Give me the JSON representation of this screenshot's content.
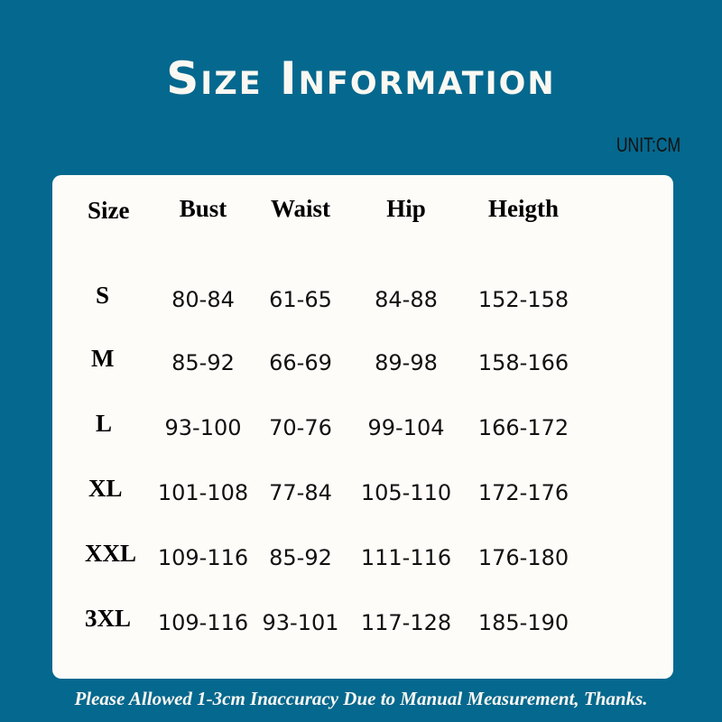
{
  "title": "Size Information",
  "unit": "UNIT:CM",
  "table": {
    "headers": [
      "Size",
      "Bust",
      "Waist",
      "Hip",
      "Heigth"
    ],
    "rows": [
      [
        "S",
        "80-84",
        "61-65",
        "84-88",
        "152-158"
      ],
      [
        "M",
        "85-92",
        "66-69",
        "89-98",
        "158-166"
      ],
      [
        "L",
        "93-100",
        "70-76",
        "99-104",
        "166-172"
      ],
      [
        "XL",
        "101-108",
        "77-84",
        "105-110",
        "172-176"
      ],
      [
        "XXL",
        "109-116",
        "85-92",
        "111-116",
        "176-180"
      ],
      [
        "3XL",
        "109-116",
        "93-101",
        "117-128",
        "185-190"
      ]
    ]
  },
  "note": "Please Allowed 1-3cm Inaccuracy Due to Manual Measurement, Thanks.",
  "colors": {
    "background": "#05688e",
    "panel": "#fefcf9"
  }
}
